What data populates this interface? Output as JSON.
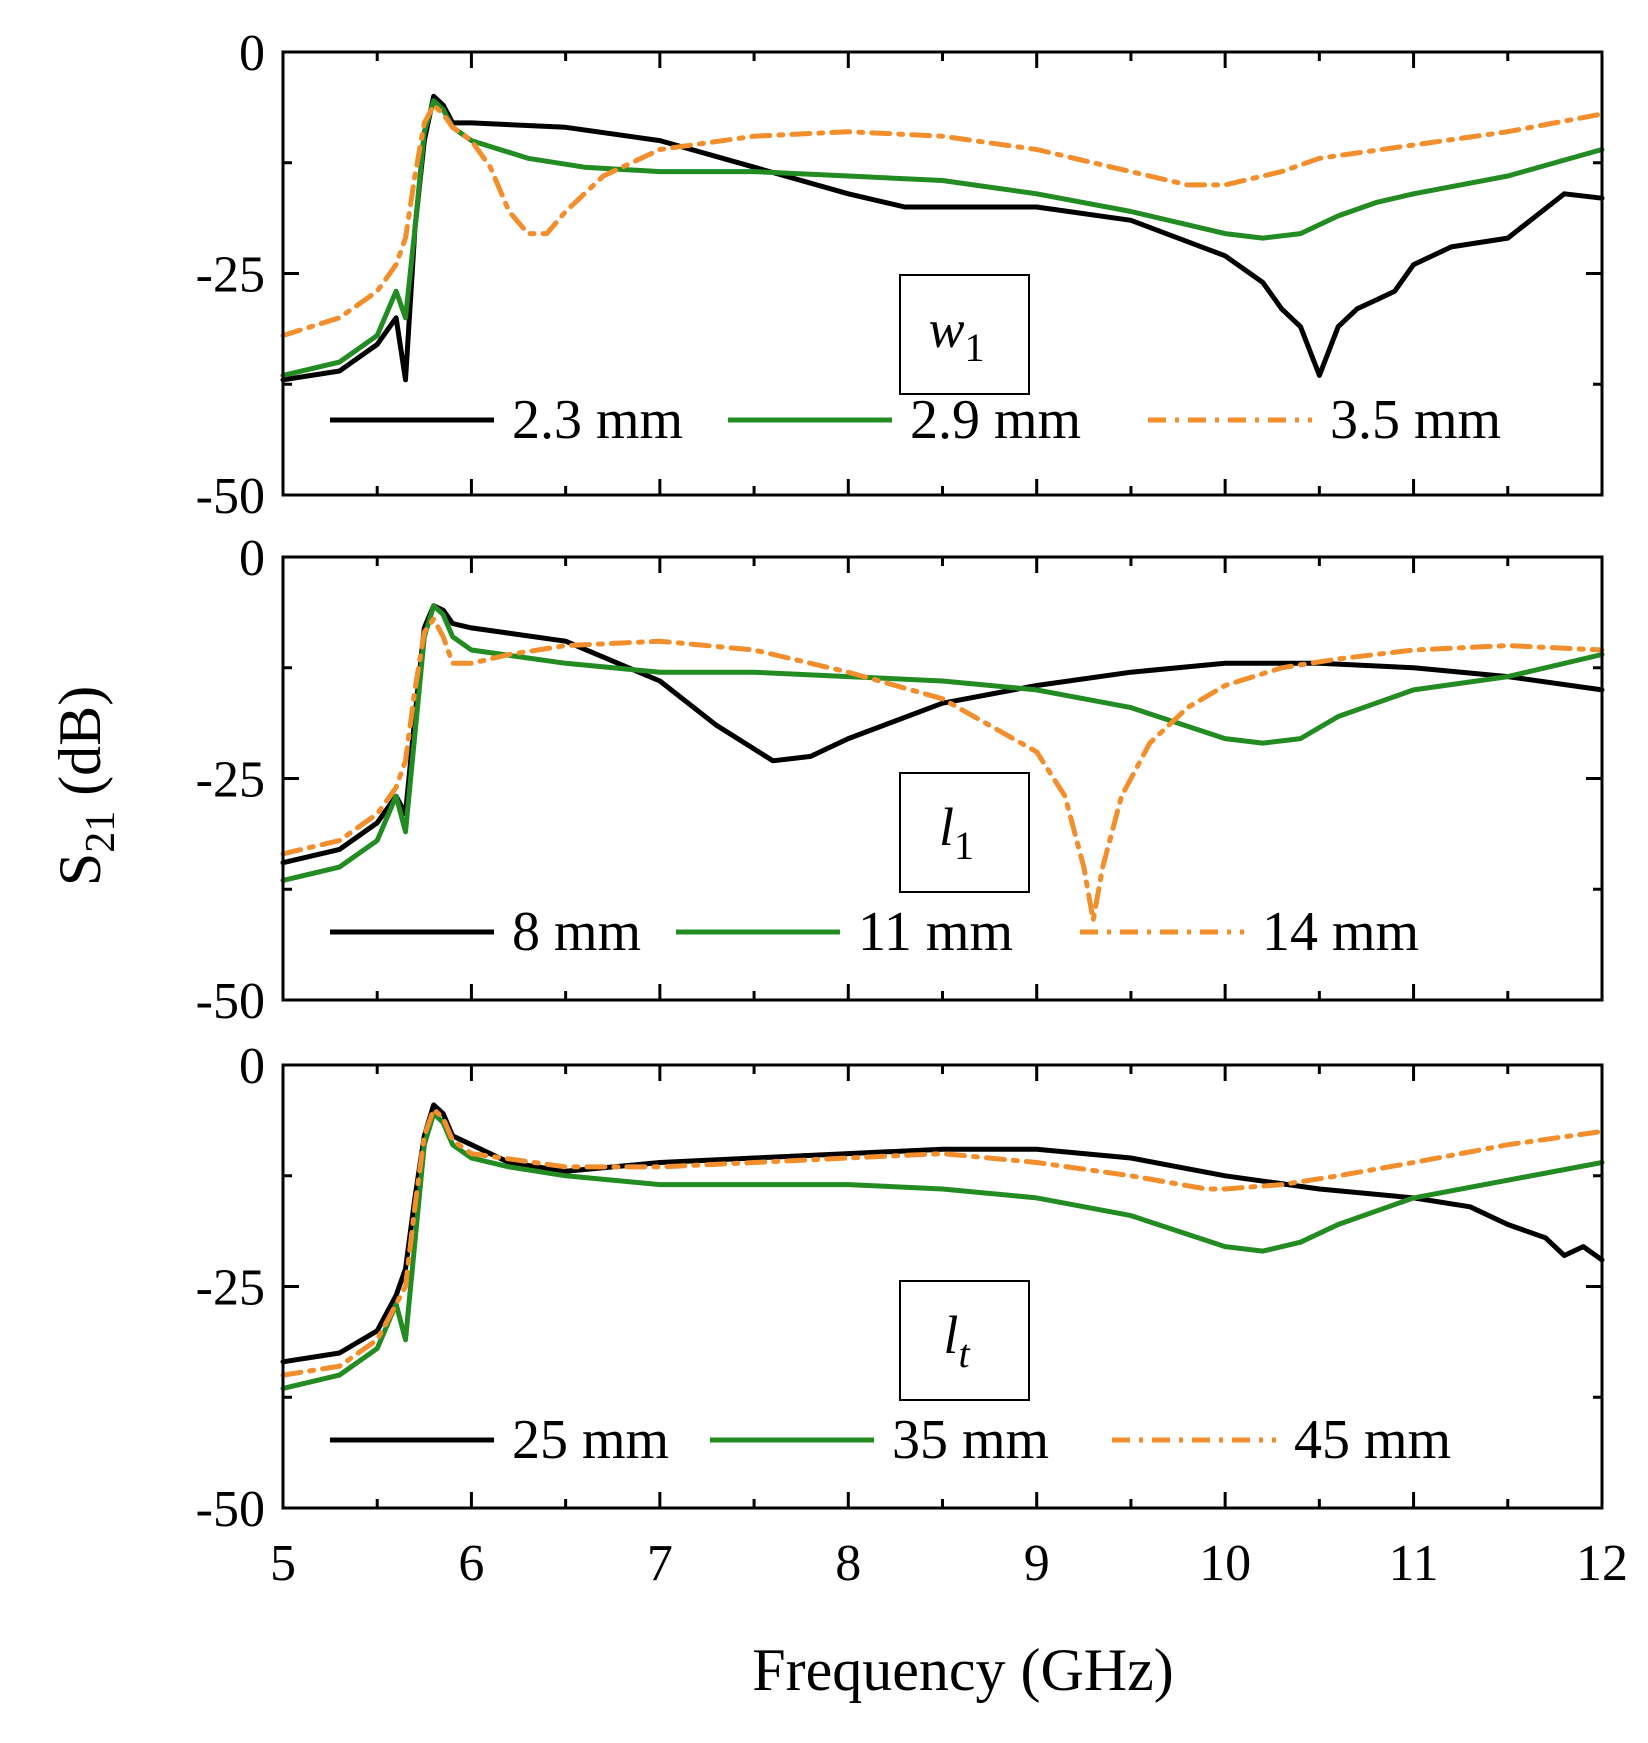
{
  "colors": {
    "series_1": "#000000",
    "series_2": "#228b22",
    "series_3": "#f28e2b",
    "background": "#ffffff",
    "frame": "#000000"
  },
  "chart_data": {
    "type": "line",
    "shared_x": true,
    "xlabel": "Frequency (GHz)",
    "ylabel": "S",
    "ylabel_subscript": "21",
    "ylabel_unit": "(dB)",
    "xlim": [
      5,
      12
    ],
    "ylim": [
      -50,
      0
    ],
    "xticks": [
      5,
      6,
      7,
      8,
      9,
      10,
      11,
      12
    ],
    "xtick_labels": [
      "5",
      "6",
      "7",
      "8",
      "9",
      "10",
      "11",
      "12"
    ],
    "yticks": [
      0,
      -25,
      -50
    ],
    "ytick_labels": [
      "0",
      "-25",
      "-50"
    ],
    "panels": [
      {
        "parameter": "w",
        "parameter_subscript": "1",
        "series": [
          {
            "name": "2.3 mm",
            "style": "solid",
            "x": [
              5.0,
              5.3,
              5.5,
              5.6,
              5.65,
              5.7,
              5.75,
              5.8,
              5.85,
              5.9,
              6.0,
              6.5,
              7.0,
              7.5,
              8.0,
              8.3,
              8.5,
              9.0,
              9.5,
              10.0,
              10.2,
              10.3,
              10.4,
              10.5,
              10.6,
              10.7,
              10.8,
              10.9,
              11.0,
              11.2,
              11.5,
              11.8,
              12.0
            ],
            "values": [
              -37,
              -36,
              -33,
              -30,
              -37,
              -20,
              -10,
              -5,
              -6,
              -8,
              -8,
              -8.5,
              -10,
              -13,
              -16,
              -17.5,
              -17.5,
              -17.5,
              -19,
              -23,
              -26,
              -29,
              -31,
              -36.5,
              -31,
              -29,
              -28,
              -27,
              -24,
              -22,
              -21,
              -16,
              -16.5
            ]
          },
          {
            "name": "2.9 mm",
            "style": "solid",
            "x": [
              5.0,
              5.3,
              5.5,
              5.6,
              5.65,
              5.7,
              5.75,
              5.8,
              5.85,
              5.9,
              6.0,
              6.3,
              6.6,
              7.0,
              7.5,
              8.0,
              8.5,
              9.0,
              9.5,
              10.0,
              10.2,
              10.4,
              10.6,
              10.8,
              11.0,
              11.5,
              12.0
            ],
            "values": [
              -36.5,
              -35,
              -32,
              -27,
              -30,
              -20,
              -9,
              -5.5,
              -6.5,
              -8.5,
              -10,
              -12,
              -13,
              -13.5,
              -13.5,
              -14,
              -14.5,
              -16,
              -18,
              -20.5,
              -21,
              -20.5,
              -18.5,
              -17,
              -16,
              -14,
              -11
            ]
          },
          {
            "name": "3.5 mm",
            "style": "dashdot",
            "x": [
              5.0,
              5.3,
              5.5,
              5.6,
              5.65,
              5.7,
              5.75,
              5.8,
              5.85,
              5.9,
              6.0,
              6.1,
              6.2,
              6.3,
              6.4,
              6.5,
              6.7,
              7.0,
              7.5,
              8.0,
              8.5,
              9.0,
              9.5,
              9.8,
              10.0,
              10.3,
              10.5,
              11.0,
              11.5,
              12.0
            ],
            "values": [
              -32,
              -30,
              -27,
              -24,
              -21,
              -14,
              -8,
              -6,
              -7,
              -8.5,
              -10,
              -13,
              -18,
              -20.5,
              -20.5,
              -18,
              -14,
              -11,
              -9.5,
              -9,
              -9.5,
              -11,
              -13.5,
              -15,
              -15,
              -13.5,
              -12,
              -10.5,
              -9,
              -7
            ]
          }
        ],
        "legend": [
          "2.3 mm",
          "2.9 mm",
          "3.5 mm"
        ]
      },
      {
        "parameter": "l",
        "parameter_subscript": "1",
        "series": [
          {
            "name": "8 mm",
            "style": "solid",
            "x": [
              5.0,
              5.3,
              5.5,
              5.6,
              5.65,
              5.7,
              5.75,
              5.8,
              5.85,
              5.9,
              6.0,
              6.5,
              7.0,
              7.3,
              7.6,
              7.8,
              8.0,
              8.5,
              9.0,
              9.5,
              10.0,
              10.5,
              11.0,
              11.5,
              12.0
            ],
            "values": [
              -34.5,
              -33,
              -30,
              -27,
              -29,
              -18,
              -8,
              -5.5,
              -6,
              -7.5,
              -8,
              -9.5,
              -14,
              -19,
              -23,
              -22.5,
              -20.5,
              -16.5,
              -14.5,
              -13,
              -12,
              -12,
              -12.5,
              -13.5,
              -15
            ]
          },
          {
            "name": "11 mm",
            "style": "solid",
            "x": [
              5.0,
              5.3,
              5.5,
              5.6,
              5.65,
              5.7,
              5.75,
              5.8,
              5.85,
              5.9,
              6.0,
              6.5,
              7.0,
              7.5,
              8.0,
              8.5,
              9.0,
              9.5,
              10.0,
              10.2,
              10.4,
              10.6,
              10.8,
              11.0,
              11.5,
              12.0
            ],
            "values": [
              -36.5,
              -35,
              -32,
              -27,
              -31,
              -20,
              -9,
              -5.5,
              -6.5,
              -9,
              -10.5,
              -12,
              -13,
              -13,
              -13.5,
              -14,
              -15,
              -17,
              -20.5,
              -21,
              -20.5,
              -18,
              -16.5,
              -15,
              -13.5,
              -11
            ]
          },
          {
            "name": "14 mm",
            "style": "dashdot",
            "x": [
              5.0,
              5.3,
              5.5,
              5.6,
              5.65,
              5.7,
              5.75,
              5.8,
              5.85,
              5.9,
              6.0,
              6.2,
              6.5,
              7.0,
              7.5,
              8.0,
              8.5,
              9.0,
              9.15,
              9.25,
              9.3,
              9.35,
              9.45,
              9.6,
              9.8,
              10.0,
              10.3,
              10.6,
              11.0,
              11.5,
              12.0
            ],
            "values": [
              -33.5,
              -32,
              -29,
              -26,
              -23,
              -15,
              -8.5,
              -7,
              -9,
              -12,
              -12,
              -11,
              -10,
              -9.5,
              -10.5,
              -13,
              -16,
              -22,
              -27,
              -35,
              -41,
              -35,
              -27,
              -21,
              -17,
              -14.5,
              -12.5,
              -11.5,
              -10.5,
              -10,
              -10.5
            ]
          }
        ],
        "legend": [
          "8 mm",
          "11 mm",
          "14 mm"
        ]
      },
      {
        "parameter": "l",
        "parameter_subscript": "t",
        "series": [
          {
            "name": "25 mm",
            "style": "solid",
            "x": [
              5.0,
              5.3,
              5.5,
              5.6,
              5.65,
              5.7,
              5.75,
              5.8,
              5.85,
              5.9,
              6.0,
              6.2,
              6.5,
              7.0,
              7.5,
              8.0,
              8.5,
              9.0,
              9.5,
              10.0,
              10.5,
              11.0,
              11.3,
              11.5,
              11.7,
              11.8,
              11.9,
              12.0
            ],
            "values": [
              -33.5,
              -32.5,
              -30,
              -26,
              -23,
              -15,
              -8,
              -4.5,
              -5.5,
              -8,
              -9,
              -11,
              -12,
              -11,
              -10.5,
              -10,
              -9.5,
              -9.5,
              -10.5,
              -12.5,
              -14,
              -15,
              -16,
              -18,
              -19.5,
              -21.5,
              -20.5,
              -22
            ]
          },
          {
            "name": "35 mm",
            "style": "solid",
            "x": [
              5.0,
              5.3,
              5.5,
              5.6,
              5.65,
              5.7,
              5.75,
              5.8,
              5.85,
              5.9,
              6.0,
              6.2,
              6.5,
              7.0,
              7.5,
              8.0,
              8.5,
              9.0,
              9.5,
              10.0,
              10.2,
              10.4,
              10.6,
              10.8,
              11.0,
              11.5,
              12.0
            ],
            "values": [
              -36.5,
              -35,
              -32,
              -27,
              -31,
              -20,
              -9,
              -5.5,
              -6.5,
              -9,
              -10.5,
              -11.5,
              -12.5,
              -13.5,
              -13.5,
              -13.5,
              -14,
              -15,
              -17,
              -20.5,
              -21,
              -20,
              -18,
              -16.5,
              -15,
              -13,
              -11
            ]
          },
          {
            "name": "45 mm",
            "style": "dashdot",
            "x": [
              5.0,
              5.3,
              5.5,
              5.6,
              5.65,
              5.7,
              5.75,
              5.8,
              5.85,
              5.9,
              6.0,
              6.5,
              7.0,
              7.5,
              8.0,
              8.5,
              9.0,
              9.5,
              9.9,
              10.0,
              10.3,
              10.6,
              11.0,
              11.5,
              12.0
            ],
            "values": [
              -35,
              -34,
              -31,
              -27,
              -25,
              -16,
              -8,
              -5,
              -6,
              -8.5,
              -10,
              -11.5,
              -11.5,
              -11,
              -10.5,
              -10,
              -11,
              -12.5,
              -14,
              -14,
              -13.5,
              -12.5,
              -11,
              -9,
              -7.5
            ]
          }
        ],
        "legend": [
          "25 mm",
          "35 mm",
          "45 mm"
        ]
      }
    ]
  }
}
